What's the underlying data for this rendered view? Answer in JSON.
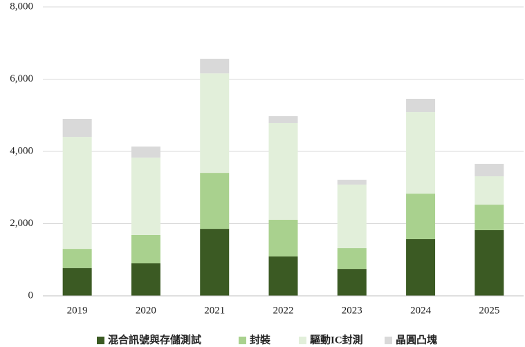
{
  "chart_data": {
    "type": "stacked-bar",
    "categories": [
      "2019",
      "2020",
      "2021",
      "2022",
      "2023",
      "2024",
      "2025"
    ],
    "series": [
      {
        "name": "混合訊號與存儲測試",
        "color": "#3b5a23",
        "values": [
          770,
          900,
          1855,
          1090,
          745,
          1570,
          1820
        ]
      },
      {
        "name": "封裝",
        "color": "#a9d18e",
        "values": [
          530,
          785,
          1550,
          1015,
          575,
          1260,
          705
        ]
      },
      {
        "name": "驅動IC封測",
        "color": "#e2efda",
        "values": [
          3100,
          2145,
          2755,
          2680,
          1760,
          2260,
          785
        ]
      },
      {
        "name": "晶圓凸塊",
        "color": "#d9d9d9",
        "values": [
          500,
          305,
          405,
          190,
          135,
          365,
          345
        ]
      }
    ],
    "ylim": [
      0,
      8000
    ],
    "yticks": [
      0,
      {
        "value": 2000,
        "label": "2,000"
      },
      {
        "value": 4000,
        "label": "4,000"
      },
      {
        "value": 6000,
        "label": "6,000"
      },
      {
        "value": 8000,
        "label": "8,000"
      }
    ],
    "grid": true,
    "legend": "bottom"
  }
}
